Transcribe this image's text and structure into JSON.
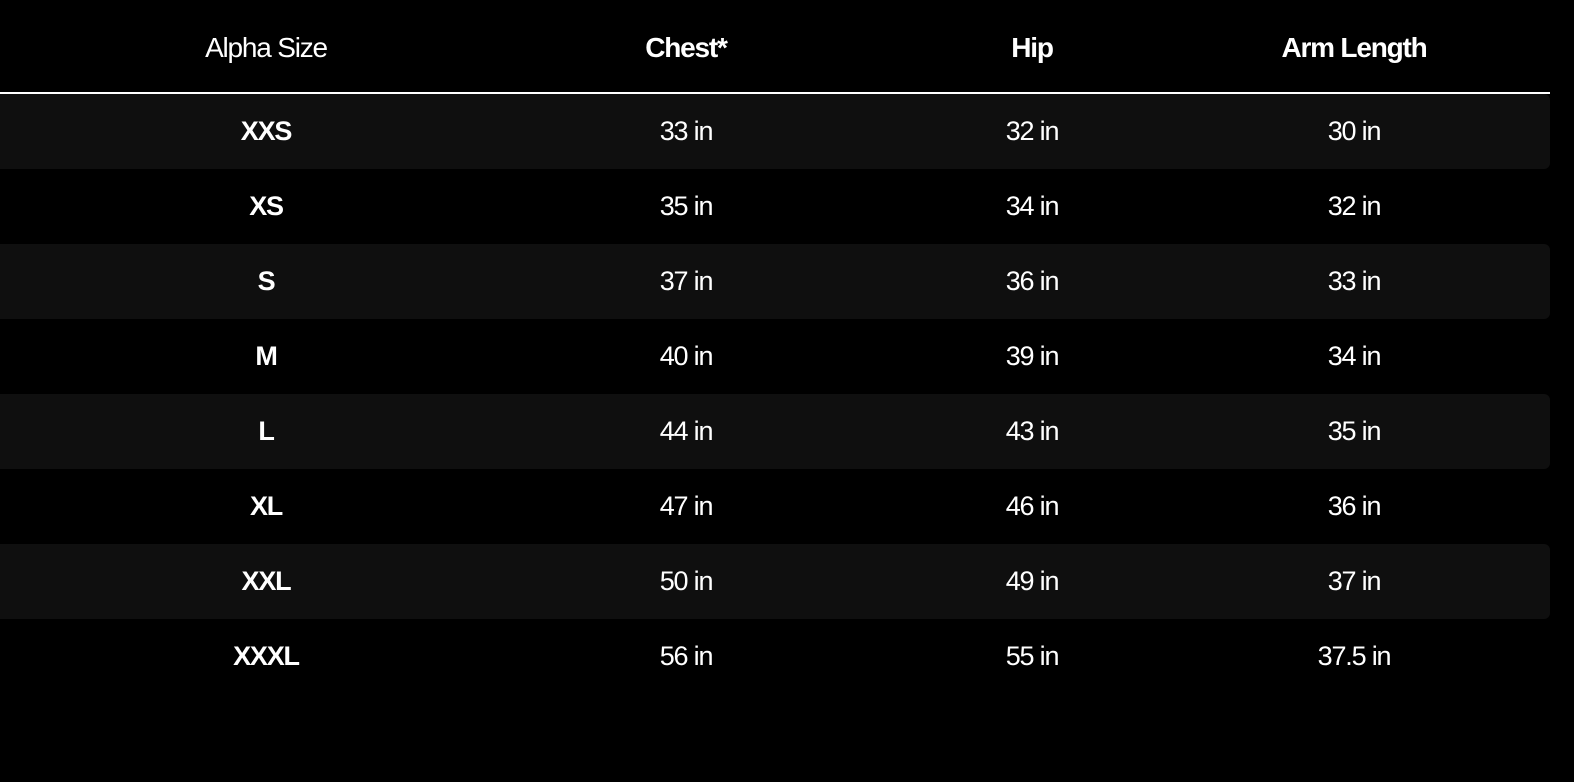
{
  "headers": [
    "Alpha Size",
    "Chest*",
    "Hip",
    "Arm Length"
  ],
  "rows": [
    {
      "size": "XXS",
      "chest": "33 in",
      "hip": "32 in",
      "arm": "30 in"
    },
    {
      "size": "XS",
      "chest": "35 in",
      "hip": "34 in",
      "arm": "32 in"
    },
    {
      "size": "S",
      "chest": "37 in",
      "hip": "36 in",
      "arm": "33 in"
    },
    {
      "size": "M",
      "chest": "40 in",
      "hip": "39 in",
      "arm": "34 in"
    },
    {
      "size": "L",
      "chest": "44 in",
      "hip": "43 in",
      "arm": "35 in"
    },
    {
      "size": "XL",
      "chest": "47 in",
      "hip": "46 in",
      "arm": "36 in"
    },
    {
      "size": "XXL",
      "chest": "50 in",
      "hip": "49 in",
      "arm": "37 in"
    },
    {
      "size": "XXXL",
      "chest": "56 in",
      "hip": "55 in",
      "arm": "37.5 in"
    }
  ],
  "colors": {
    "background": "#000000",
    "alt_row": "#0f0f0f",
    "text": "#ffffff"
  }
}
